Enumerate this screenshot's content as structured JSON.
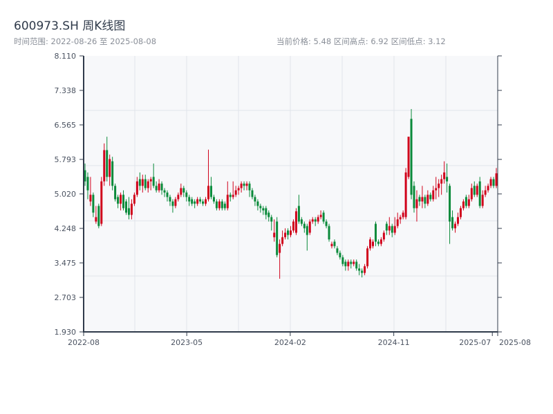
{
  "header": {
    "title": "600973.SH 周K线图",
    "range_text": "时间范围: 2022-08-26 至 2025-08-08",
    "stats_text": "当前价格: 5.48  区间高点: 6.92  区间低点: 3.12"
  },
  "colors": {
    "up": "#d0021b",
    "down": "#0a8a3a",
    "axis": "#2f3a4a",
    "grid": "#e1e4ea",
    "plot_bg": "#f7f8fa"
  },
  "chart_data": {
    "type": "candlestick",
    "title": "600973.SH 周K线图",
    "start_date": "2022-08-26",
    "end_date": "2025-08-08",
    "current_price": 5.48,
    "period_high": 6.92,
    "period_low": 3.12,
    "ylim": [
      1.93,
      8.11
    ],
    "y_ticks": [
      "8.110",
      "7.338",
      "6.565",
      "5.793",
      "5.020",
      "4.248",
      "3.475",
      "2.703",
      "1.930"
    ],
    "x_ticks": [
      "2022-08",
      "2023-05",
      "2024-02",
      "2024-11",
      "2025-07",
      "2025-08"
    ],
    "x_tick_fracs": [
      0,
      0.249,
      0.499,
      0.749,
      0.987,
      1
    ],
    "up_color_meaning": "red = up, green = down",
    "ohlc_fields": [
      "open",
      "high",
      "low",
      "close"
    ],
    "candles": [
      [
        5.55,
        5.7,
        5.2,
        5.3
      ],
      [
        5.4,
        5.5,
        4.9,
        5.1
      ],
      [
        4.85,
        5.4,
        4.75,
        5.0
      ],
      [
        5.0,
        5.05,
        4.5,
        4.6
      ],
      [
        4.4,
        4.75,
        4.35,
        4.5
      ],
      [
        4.75,
        4.8,
        4.25,
        4.3
      ],
      [
        4.35,
        5.4,
        4.3,
        5.3
      ],
      [
        5.3,
        6.15,
        5.2,
        6.0
      ],
      [
        6.0,
        6.3,
        5.3,
        5.4
      ],
      [
        5.4,
        5.9,
        5.2,
        5.8
      ],
      [
        5.75,
        5.85,
        5.1,
        5.2
      ],
      [
        5.2,
        5.25,
        4.85,
        4.9
      ],
      [
        4.95,
        5.0,
        4.7,
        4.8
      ],
      [
        4.8,
        5.05,
        4.65,
        5.0
      ],
      [
        5.0,
        5.1,
        4.65,
        4.7
      ],
      [
        4.85,
        4.9,
        4.55,
        4.6
      ],
      [
        4.7,
        4.95,
        4.45,
        4.55
      ],
      [
        4.55,
        4.9,
        4.45,
        4.8
      ],
      [
        4.8,
        5.05,
        4.75,
        5.0
      ],
      [
        5.0,
        5.4,
        4.95,
        5.3
      ],
      [
        5.35,
        5.5,
        5.1,
        5.2
      ],
      [
        5.2,
        5.45,
        5.05,
        5.35
      ],
      [
        5.35,
        5.45,
        5.1,
        5.15
      ],
      [
        5.15,
        5.35,
        5.05,
        5.3
      ],
      [
        5.3,
        5.4,
        5.1,
        5.35
      ],
      [
        5.4,
        5.7,
        5.15,
        5.2
      ],
      [
        5.2,
        5.3,
        5.05,
        5.1
      ],
      [
        5.1,
        5.35,
        5.05,
        5.25
      ],
      [
        5.25,
        5.3,
        5.0,
        5.1
      ],
      [
        5.1,
        5.15,
        4.95,
        5.05
      ],
      [
        5.05,
        5.1,
        4.85,
        4.95
      ],
      [
        4.95,
        5.0,
        4.75,
        4.85
      ],
      [
        4.85,
        4.9,
        4.6,
        4.75
      ],
      [
        4.75,
        4.95,
        4.7,
        4.9
      ],
      [
        4.9,
        5.05,
        4.85,
        5.0
      ],
      [
        5.0,
        5.25,
        4.95,
        5.15
      ],
      [
        5.15,
        5.2,
        4.95,
        5.05
      ],
      [
        5.05,
        5.1,
        4.85,
        4.95
      ],
      [
        4.95,
        5.0,
        4.75,
        4.85
      ],
      [
        4.9,
        4.95,
        4.75,
        4.8
      ],
      [
        4.85,
        4.9,
        4.7,
        4.8
      ],
      [
        4.8,
        4.95,
        4.75,
        4.9
      ],
      [
        4.9,
        4.95,
        4.8,
        4.85
      ],
      [
        4.85,
        4.9,
        4.75,
        4.8
      ],
      [
        4.8,
        4.95,
        4.75,
        4.9
      ],
      [
        4.9,
        6.01,
        4.85,
        5.2
      ],
      [
        5.2,
        5.4,
        4.9,
        4.95
      ],
      [
        4.95,
        5.0,
        4.8,
        4.85
      ],
      [
        4.85,
        4.9,
        4.65,
        4.7
      ],
      [
        4.7,
        4.9,
        4.65,
        4.85
      ],
      [
        4.85,
        4.9,
        4.65,
        4.7
      ],
      [
        4.8,
        4.85,
        4.65,
        4.7
      ],
      [
        4.7,
        5.3,
        4.65,
        5.0
      ],
      [
        5.0,
        5.05,
        4.85,
        4.95
      ],
      [
        4.95,
        5.3,
        4.9,
        5.0
      ],
      [
        5.0,
        5.2,
        4.95,
        5.1
      ],
      [
        5.1,
        5.2,
        5.0,
        5.15
      ],
      [
        5.15,
        5.3,
        5.05,
        5.25
      ],
      [
        5.25,
        5.3,
        5.1,
        5.2
      ],
      [
        5.2,
        5.3,
        5.1,
        5.25
      ],
      [
        5.25,
        5.3,
        4.95,
        5.1
      ],
      [
        5.1,
        5.15,
        4.9,
        4.95
      ],
      [
        4.95,
        5.0,
        4.75,
        4.85
      ],
      [
        4.85,
        4.9,
        4.65,
        4.75
      ],
      [
        4.75,
        4.8,
        4.6,
        4.7
      ],
      [
        4.7,
        4.75,
        4.55,
        4.65
      ],
      [
        4.7,
        4.75,
        4.45,
        4.55
      ],
      [
        4.6,
        4.65,
        4.4,
        4.5
      ],
      [
        4.5,
        4.55,
        4.2,
        4.4
      ],
      [
        4.05,
        4.45,
        3.95,
        4.15
      ],
      [
        4.4,
        4.5,
        3.6,
        3.65
      ],
      [
        3.7,
        4.0,
        3.12,
        3.9
      ],
      [
        3.9,
        4.2,
        3.85,
        4.05
      ],
      [
        4.05,
        4.25,
        4.0,
        4.15
      ],
      [
        4.2,
        4.25,
        4.0,
        4.1
      ],
      [
        4.1,
        4.3,
        4.05,
        4.2
      ],
      [
        4.2,
        4.45,
        4.15,
        4.4
      ],
      [
        4.15,
        4.7,
        4.1,
        4.63
      ],
      [
        4.75,
        5.0,
        4.35,
        4.4
      ],
      [
        4.45,
        4.5,
        4.3,
        4.35
      ],
      [
        4.35,
        4.4,
        4.15,
        4.25
      ],
      [
        4.3,
        4.35,
        3.75,
        4.1
      ],
      [
        4.15,
        4.45,
        4.1,
        4.4
      ],
      [
        4.4,
        4.5,
        4.35,
        4.45
      ],
      [
        4.45,
        4.5,
        4.3,
        4.4
      ],
      [
        4.4,
        4.55,
        4.35,
        4.5
      ],
      [
        4.5,
        4.65,
        4.45,
        4.55
      ],
      [
        4.6,
        4.65,
        4.35,
        4.4
      ],
      [
        4.4,
        4.45,
        4.25,
        4.3
      ],
      [
        4.3,
        4.35,
        3.95,
        4.0
      ],
      [
        3.85,
        3.95,
        3.8,
        3.9
      ],
      [
        3.95,
        4.0,
        3.8,
        3.85
      ],
      [
        3.8,
        3.85,
        3.65,
        3.7
      ],
      [
        3.7,
        3.75,
        3.55,
        3.6
      ],
      [
        3.6,
        3.65,
        3.4,
        3.45
      ],
      [
        3.5,
        3.55,
        3.3,
        3.4
      ],
      [
        3.4,
        3.55,
        3.3,
        3.5
      ],
      [
        3.5,
        3.55,
        3.35,
        3.45
      ],
      [
        3.45,
        3.55,
        3.4,
        3.5
      ],
      [
        3.5,
        3.55,
        3.3,
        3.35
      ],
      [
        3.35,
        3.45,
        3.2,
        3.3
      ],
      [
        3.3,
        3.35,
        3.15,
        3.25
      ],
      [
        3.25,
        3.45,
        3.2,
        3.4
      ],
      [
        3.4,
        3.85,
        3.35,
        3.8
      ],
      [
        3.8,
        4.05,
        3.75,
        4.0
      ],
      [
        3.85,
        4.0,
        3.8,
        3.95
      ],
      [
        4.35,
        4.4,
        3.85,
        3.95
      ],
      [
        3.95,
        4.0,
        3.85,
        3.9
      ],
      [
        3.9,
        4.05,
        3.85,
        4.0
      ],
      [
        4.0,
        4.2,
        3.95,
        4.15
      ],
      [
        4.35,
        4.4,
        4.1,
        4.2
      ],
      [
        4.2,
        4.5,
        4.1,
        4.3
      ],
      [
        4.3,
        4.35,
        4.05,
        4.15
      ],
      [
        4.15,
        4.5,
        4.1,
        4.3
      ],
      [
        4.3,
        4.6,
        4.25,
        4.45
      ],
      [
        4.45,
        4.55,
        4.35,
        4.5
      ],
      [
        4.5,
        4.65,
        4.45,
        4.6
      ],
      [
        4.5,
        5.6,
        4.45,
        5.5
      ],
      [
        5.4,
        6.3,
        5.35,
        6.3
      ],
      [
        6.7,
        6.92,
        4.9,
        5.0
      ],
      [
        5.2,
        5.3,
        4.6,
        4.7
      ],
      [
        4.7,
        5.1,
        4.4,
        4.9
      ],
      [
        4.95,
        5.0,
        4.75,
        4.85
      ],
      [
        4.85,
        5.2,
        4.7,
        4.95
      ],
      [
        4.95,
        5.0,
        4.7,
        4.8
      ],
      [
        4.8,
        5.1,
        4.75,
        5.0
      ],
      [
        5.0,
        5.05,
        4.85,
        4.9
      ],
      [
        4.9,
        5.2,
        4.85,
        5.1
      ],
      [
        5.1,
        5.4,
        4.9,
        5.15
      ],
      [
        5.15,
        5.35,
        4.95,
        5.25
      ],
      [
        5.25,
        5.45,
        5.0,
        5.35
      ],
      [
        5.35,
        5.75,
        5.25,
        5.5
      ],
      [
        5.4,
        5.7,
        5.05,
        5.3
      ],
      [
        5.2,
        5.25,
        3.9,
        4.4
      ],
      [
        4.5,
        4.65,
        4.2,
        4.25
      ],
      [
        4.25,
        4.4,
        4.15,
        4.35
      ],
      [
        4.35,
        4.6,
        4.3,
        4.5
      ],
      [
        4.5,
        4.75,
        4.45,
        4.7
      ],
      [
        4.7,
        4.9,
        4.65,
        4.85
      ],
      [
        4.95,
        5.0,
        4.7,
        4.75
      ],
      [
        4.75,
        5.0,
        4.7,
        4.9
      ],
      [
        4.9,
        5.25,
        4.85,
        5.15
      ],
      [
        5.2,
        5.3,
        4.95,
        5.0
      ],
      [
        5.0,
        5.25,
        4.95,
        5.2
      ],
      [
        5.3,
        5.4,
        4.7,
        4.75
      ],
      [
        4.75,
        5.1,
        4.7,
        5.0
      ],
      [
        5.0,
        5.2,
        4.95,
        5.1
      ],
      [
        5.1,
        5.25,
        5.05,
        5.2
      ],
      [
        5.2,
        5.4,
        5.15,
        5.35
      ],
      [
        5.35,
        5.4,
        5.15,
        5.2
      ],
      [
        5.2,
        5.6,
        5.15,
        5.48
      ]
    ]
  }
}
